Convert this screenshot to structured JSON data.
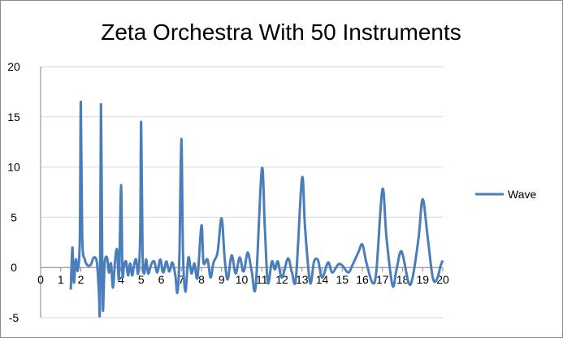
{
  "chart_data": {
    "type": "line",
    "title": "Zeta Orchestra With 50 Instruments",
    "xlabel": "",
    "ylabel": "",
    "xlim": [
      0,
      20
    ],
    "ylim": [
      -5,
      20
    ],
    "x_ticks": [
      0,
      1,
      2,
      3,
      4,
      5,
      6,
      7,
      8,
      9,
      10,
      11,
      12,
      13,
      14,
      15,
      16,
      17,
      18,
      19,
      20
    ],
    "y_ticks": [
      -5,
      0,
      5,
      10,
      15,
      20
    ],
    "grid": true,
    "legend_position": "right",
    "series_color": "#4a7ebb",
    "series": [
      {
        "name": "Wave",
        "points": [
          [
            1.5,
            -2.2
          ],
          [
            1.58,
            2.0
          ],
          [
            1.65,
            -1.5
          ],
          [
            1.75,
            0.8
          ],
          [
            1.85,
            -0.3
          ],
          [
            1.95,
            3
          ],
          [
            2.0,
            16.5
          ],
          [
            2.07,
            3
          ],
          [
            2.2,
            0.8
          ],
          [
            2.35,
            0.2
          ],
          [
            2.5,
            0.3
          ],
          [
            2.65,
            1.0
          ],
          [
            2.8,
            0.5
          ],
          [
            2.9,
            -2.5
          ],
          [
            2.95,
            -3.6
          ],
          [
            3.0,
            16.2
          ],
          [
            3.06,
            2
          ],
          [
            3.1,
            -4.3
          ],
          [
            3.18,
            0.3
          ],
          [
            3.3,
            1.0
          ],
          [
            3.4,
            -0.5
          ],
          [
            3.5,
            0.4
          ],
          [
            3.6,
            -2.0
          ],
          [
            3.7,
            0.6
          ],
          [
            3.8,
            1.8
          ],
          [
            3.9,
            -1.0
          ],
          [
            4.0,
            8.2
          ],
          [
            4.07,
            -0.5
          ],
          [
            4.15,
            0.2
          ],
          [
            4.25,
            0.6
          ],
          [
            4.35,
            -0.8
          ],
          [
            4.45,
            0.4
          ],
          [
            4.55,
            -0.8
          ],
          [
            4.65,
            0.3
          ],
          [
            4.75,
            0.8
          ],
          [
            4.85,
            -0.6
          ],
          [
            4.95,
            3.0
          ],
          [
            5.0,
            14.5
          ],
          [
            5.07,
            1.5
          ],
          [
            5.15,
            -0.6
          ],
          [
            5.25,
            0.8
          ],
          [
            5.35,
            -0.6
          ],
          [
            5.5,
            0.3
          ],
          [
            5.65,
            0.6
          ],
          [
            5.8,
            -0.5
          ],
          [
            5.95,
            0.8
          ],
          [
            6.1,
            -0.5
          ],
          [
            6.25,
            0.6
          ],
          [
            6.4,
            -0.4
          ],
          [
            6.55,
            0.5
          ],
          [
            6.7,
            -0.8
          ],
          [
            6.8,
            -2.5
          ],
          [
            6.9,
            1.0
          ],
          [
            7.0,
            12.8
          ],
          [
            7.08,
            1.5
          ],
          [
            7.2,
            -2.4
          ],
          [
            7.35,
            1.0
          ],
          [
            7.5,
            -0.6
          ],
          [
            7.65,
            0.4
          ],
          [
            7.8,
            -1.0
          ],
          [
            8.0,
            4.2
          ],
          [
            8.1,
            0.5
          ],
          [
            8.3,
            0.8
          ],
          [
            8.45,
            -1.0
          ],
          [
            8.6,
            0.5
          ],
          [
            8.8,
            1.5
          ],
          [
            9.0,
            4.9
          ],
          [
            9.15,
            1.0
          ],
          [
            9.3,
            -1.2
          ],
          [
            9.5,
            1.2
          ],
          [
            9.7,
            -0.6
          ],
          [
            9.9,
            1.0
          ],
          [
            10.1,
            -0.4
          ],
          [
            10.3,
            1.5
          ],
          [
            10.5,
            -0.4
          ],
          [
            10.7,
            -1.8
          ],
          [
            11.0,
            9.8
          ],
          [
            11.15,
            4.0
          ],
          [
            11.3,
            -1.5
          ],
          [
            11.5,
            0.6
          ],
          [
            11.65,
            -0.2
          ],
          [
            11.8,
            0.6
          ],
          [
            12.0,
            -1.0
          ],
          [
            12.3,
            0.9
          ],
          [
            12.5,
            -0.5
          ],
          [
            12.7,
            -1.0
          ],
          [
            13.0,
            8.9
          ],
          [
            13.15,
            4.0
          ],
          [
            13.4,
            -1.5
          ],
          [
            13.6,
            0.6
          ],
          [
            13.8,
            0.7
          ],
          [
            14.0,
            -1.0
          ],
          [
            14.3,
            0.5
          ],
          [
            14.5,
            -0.5
          ],
          [
            14.8,
            0.3
          ],
          [
            15.0,
            0.2
          ],
          [
            15.3,
            -0.5
          ],
          [
            15.5,
            0.2
          ],
          [
            15.8,
            1.5
          ],
          [
            16.0,
            2.3
          ],
          [
            16.2,
            0.5
          ],
          [
            16.5,
            -1.5
          ],
          [
            16.7,
            -0.3
          ],
          [
            17.0,
            7.8
          ],
          [
            17.2,
            3.0
          ],
          [
            17.5,
            -1.8
          ],
          [
            17.7,
            -0.2
          ],
          [
            17.95,
            1.6
          ],
          [
            18.3,
            -1.5
          ],
          [
            18.5,
            -1.0
          ],
          [
            18.8,
            3.0
          ],
          [
            19.0,
            6.8
          ],
          [
            19.25,
            3.0
          ],
          [
            19.5,
            -1.0
          ],
          [
            19.7,
            -1.2
          ],
          [
            19.9,
            0.2
          ],
          [
            20.0,
            0.7
          ]
        ]
      }
    ]
  }
}
